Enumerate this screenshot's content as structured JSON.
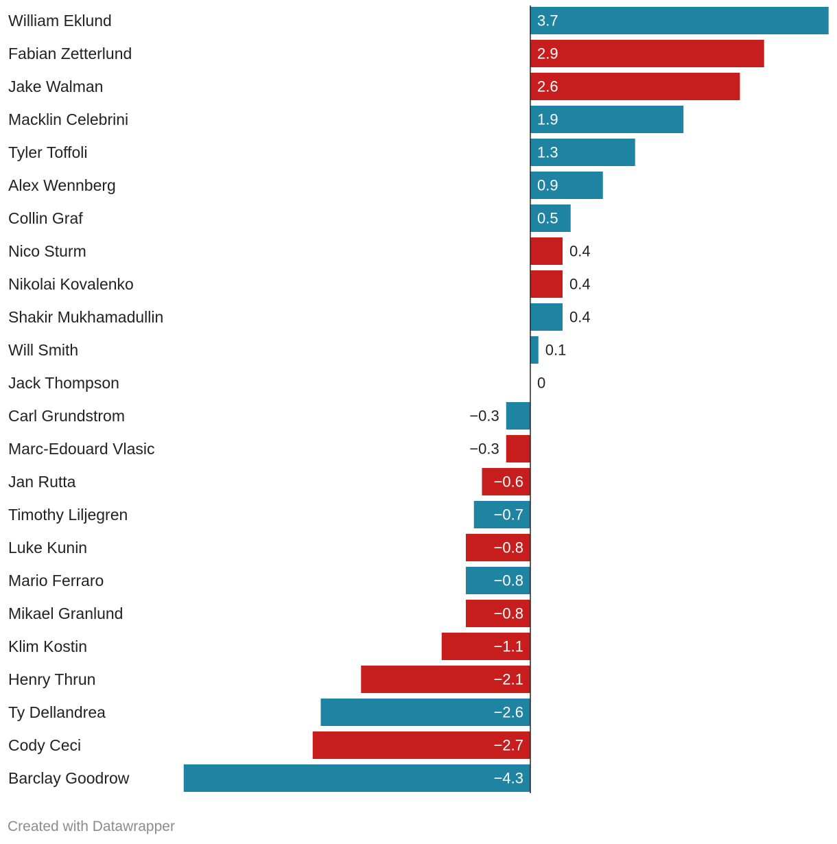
{
  "chart_data": {
    "type": "bar",
    "orientation": "horizontal",
    "categories": [
      "William Eklund",
      "Fabian Zetterlund",
      "Jake Walman",
      "Macklin Celebrini",
      "Tyler Toffoli",
      "Alex Wennberg",
      "Collin Graf",
      "Nico Sturm",
      "Nikolai Kovalenko",
      "Shakir Mukhamadullin",
      "Will Smith",
      "Jack Thompson",
      "Carl Grundstrom",
      "Marc-Edouard Vlasic",
      "Jan Rutta",
      "Timothy Liljegren",
      "Luke Kunin",
      "Mario Ferraro",
      "Mikael Granlund",
      "Klim Kostin",
      "Henry Thrun",
      "Ty Dellandrea",
      "Cody Ceci",
      "Barclay Goodrow"
    ],
    "values": [
      3.7,
      2.9,
      2.6,
      1.9,
      1.3,
      0.9,
      0.5,
      0.4,
      0.4,
      0.4,
      0.1,
      0,
      -0.3,
      -0.3,
      -0.6,
      -0.7,
      -0.8,
      -0.8,
      -0.8,
      -1.1,
      -2.1,
      -2.6,
      -2.7,
      -4.3
    ],
    "value_labels": [
      "3.7",
      "2.9",
      "2.6",
      "1.9",
      "1.3",
      "0.9",
      "0.5",
      "0.4",
      "0.4",
      "0.4",
      "0.1",
      "0",
      "−0.3",
      "−0.3",
      "−0.6",
      "−0.7",
      "−0.8",
      "−0.8",
      "−0.8",
      "−1.1",
      "−2.1",
      "−2.6",
      "−2.7",
      "−4.3"
    ],
    "bar_colors": [
      "blue",
      "red",
      "red",
      "blue",
      "blue",
      "blue",
      "blue",
      "red",
      "red",
      "blue",
      "blue",
      "blue",
      "blue",
      "red",
      "red",
      "blue",
      "red",
      "blue",
      "red",
      "red",
      "red",
      "blue",
      "red",
      "blue"
    ],
    "xlim": [
      -4.3,
      3.7
    ],
    "title": "",
    "xlabel": "",
    "ylabel": ""
  },
  "colors": {
    "blue": "#1f83a2",
    "red": "#c71e1d",
    "axis": "#222222"
  },
  "footer": {
    "credit": "Created with Datawrapper"
  }
}
